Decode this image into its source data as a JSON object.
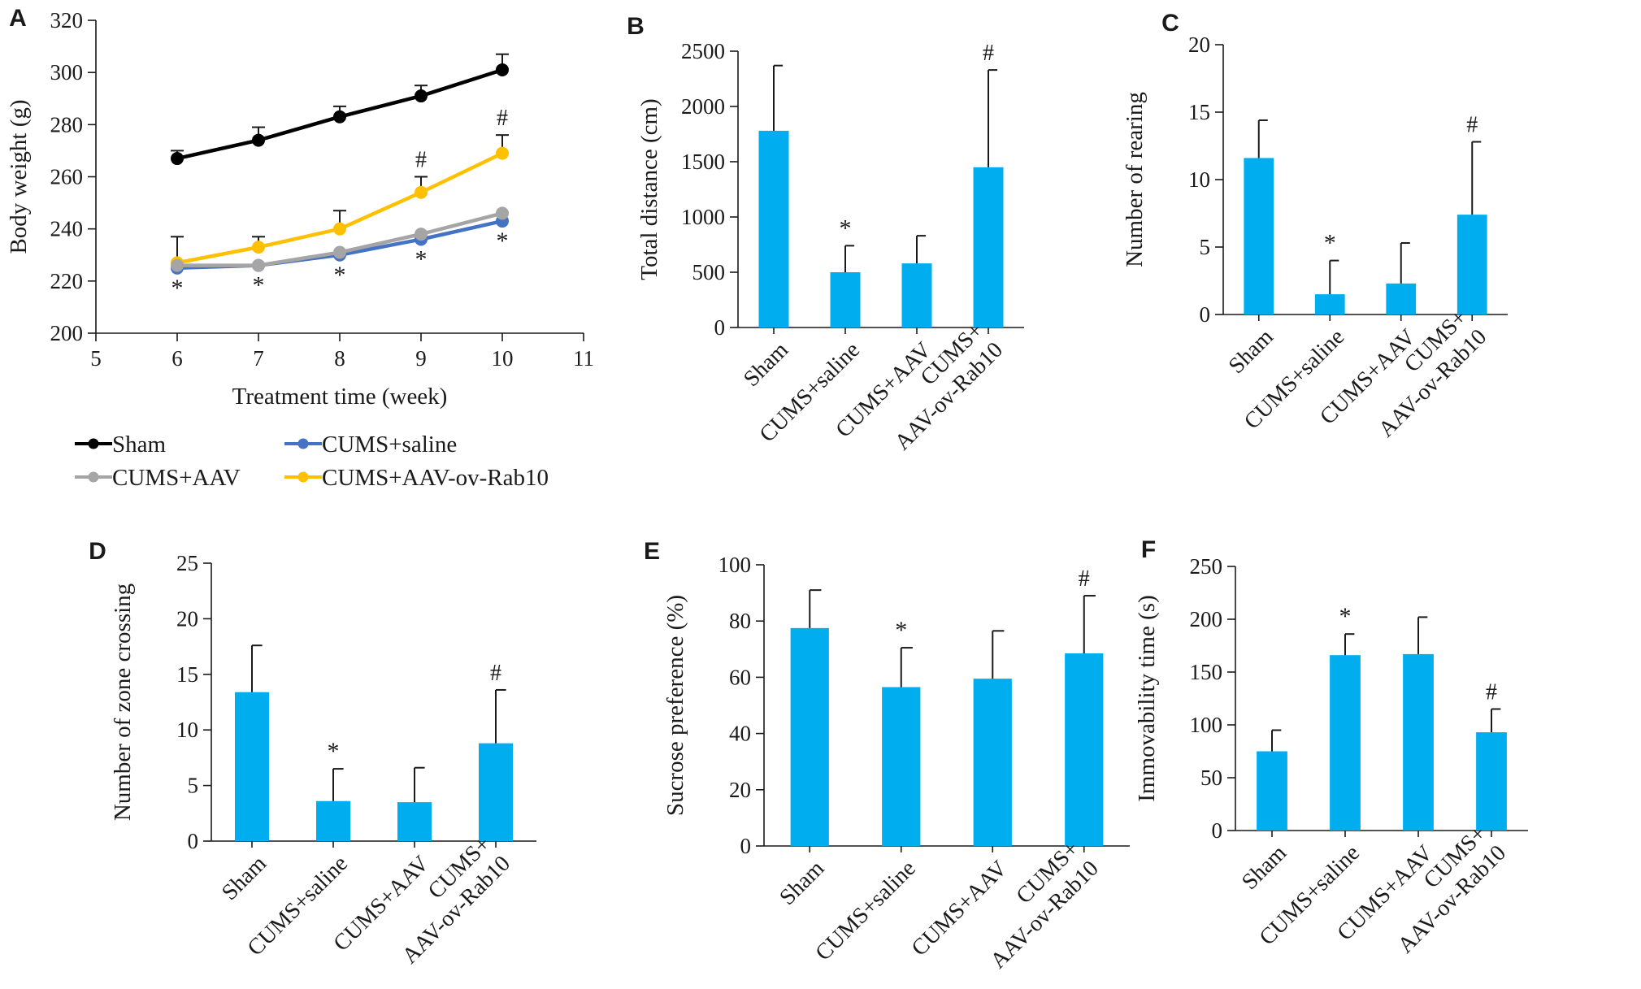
{
  "colors": {
    "bar": "#00aeef",
    "sham": "#000000",
    "cums_saline": "#4472c4",
    "cums_aav": "#a5a5a5",
    "cums_aav_rab10": "#ffc000",
    "axis": "#1a1a1a"
  },
  "chart_data": [
    {
      "panel": "A",
      "type": "line",
      "xlabel": "Treatment time (week)",
      "ylabel": "Body weight (g)",
      "xlim": [
        5,
        11
      ],
      "ylim": [
        200,
        320
      ],
      "xticks": [
        "5",
        "6",
        "7",
        "8",
        "9",
        "10",
        "11"
      ],
      "yticks": [
        "200",
        "220",
        "240",
        "260",
        "280",
        "300",
        "320"
      ],
      "x": [
        6,
        7,
        8,
        9,
        10
      ],
      "series": [
        {
          "name": "Sham",
          "color": "#000000",
          "values": [
            267,
            274,
            283,
            291,
            301
          ],
          "errors": [
            3,
            5,
            4,
            4,
            6
          ],
          "annotations": []
        },
        {
          "name": "CUMS+saline",
          "color": "#4472c4",
          "values": [
            225,
            226,
            230,
            236,
            243
          ],
          "errors": [
            0,
            0,
            0,
            0,
            0
          ],
          "annotations": [
            "*",
            "*",
            "*",
            "*",
            "*"
          ]
        },
        {
          "name": "CUMS+AAV",
          "color": "#a5a5a5",
          "values": [
            226,
            226,
            231,
            238,
            246
          ],
          "errors": [
            0,
            0,
            0,
            0,
            0
          ],
          "annotations": []
        },
        {
          "name": "CUMS+AAV-ov-Rab10",
          "color": "#ffc000",
          "values": [
            227,
            233,
            240,
            254,
            269
          ],
          "errors": [
            10,
            4,
            7,
            6,
            7
          ],
          "annotations": [
            "",
            "",
            "",
            "#",
            "#"
          ]
        }
      ]
    },
    {
      "panel": "B",
      "type": "bar",
      "ylabel": "Total distance (cm)",
      "ylim": [
        0,
        2500
      ],
      "yticks": [
        "0",
        "500",
        "1000",
        "1500",
        "2000",
        "2500"
      ],
      "categories": [
        "Sham",
        "CUMS+saline",
        "CUMS+AAV",
        "CUMS+|AAV-ov-Rab10"
      ],
      "values": [
        1780,
        500,
        580,
        1450
      ],
      "errors": [
        590,
        240,
        250,
        880
      ],
      "annotations": [
        "",
        "*",
        "",
        "#"
      ]
    },
    {
      "panel": "C",
      "type": "bar",
      "ylabel": "Number of rearing",
      "ylim": [
        0,
        20
      ],
      "yticks": [
        "0",
        "5",
        "10",
        "15",
        "20"
      ],
      "categories": [
        "Sham",
        "CUMS+saline",
        "CUMS+AAV",
        "CUMS+|AAV-ov-Rab10"
      ],
      "values": [
        11.6,
        1.5,
        2.3,
        7.4
      ],
      "errors": [
        2.8,
        2.5,
        3.0,
        5.4
      ],
      "annotations": [
        "",
        "*",
        "",
        "#"
      ]
    },
    {
      "panel": "D",
      "type": "bar",
      "ylabel": "Number of zone crossing",
      "ylim": [
        0,
        25
      ],
      "yticks": [
        "0",
        "5",
        "10",
        "15",
        "20",
        "25"
      ],
      "categories": [
        "Sham",
        "CUMS+saline",
        "CUMS+AAV",
        "CUMS+|AAV-ov-Rab10"
      ],
      "values": [
        13.4,
        3.6,
        3.5,
        8.8
      ],
      "errors": [
        4.2,
        2.9,
        3.1,
        4.8
      ],
      "annotations": [
        "",
        "*",
        "",
        "#"
      ]
    },
    {
      "panel": "E",
      "type": "bar",
      "ylabel": "Sucrose preference (%)",
      "ylim": [
        0,
        100
      ],
      "yticks": [
        "0",
        "20",
        "40",
        "60",
        "80",
        "100"
      ],
      "categories": [
        "Sham",
        "CUMS+saline",
        "CUMS+AAV",
        "CUMS+|AAV-ov-Rab10"
      ],
      "values": [
        77.5,
        56.5,
        59.5,
        68.5
      ],
      "errors": [
        13.5,
        14,
        17,
        20.5
      ],
      "annotations": [
        "",
        "*",
        "",
        "#"
      ]
    },
    {
      "panel": "F",
      "type": "bar",
      "ylabel": "Immovability time (s)",
      "ylim": [
        0,
        250
      ],
      "yticks": [
        "0",
        "50",
        "100",
        "150",
        "200",
        "250"
      ],
      "categories": [
        "Sham",
        "CUMS+saline",
        "CUMS+AAV",
        "CUMS+|AAV-ov-Rab10"
      ],
      "values": [
        75,
        166,
        167,
        93
      ],
      "errors": [
        20,
        20,
        35,
        22
      ],
      "annotations": [
        "",
        "*",
        "",
        "#"
      ]
    }
  ]
}
